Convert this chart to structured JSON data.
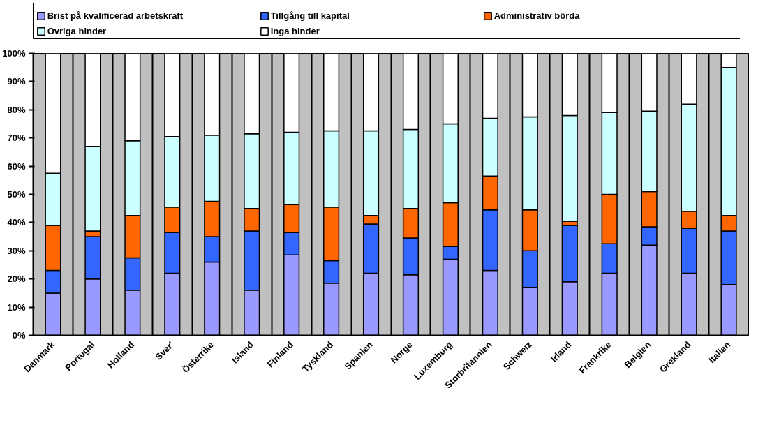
{
  "chart_data": {
    "type": "bar",
    "stacked": true,
    "categories": [
      "Danmark",
      "Portugal",
      "Holland",
      "Sver'",
      "Österrike",
      "Island",
      "Finland",
      "Tyskland",
      "Spanien",
      "Norge",
      "Luxemburg",
      "Storbritannien",
      "Schweiz",
      "Irland",
      "Frankrike",
      "Belgien",
      "Grekland",
      "Italien"
    ],
    "series": [
      {
        "name": "Brist på kvalificerad arbetskraft",
        "color": "#9999ff",
        "values": [
          15,
          20,
          16,
          22,
          26,
          16,
          28.5,
          18.5,
          22,
          21.5,
          27,
          23,
          17,
          19,
          22,
          32,
          22,
          18
        ]
      },
      {
        "name": "Tillgång till kapital",
        "color": "#3366ff",
        "values": [
          8,
          15,
          11.5,
          14.5,
          9,
          21,
          8,
          8,
          17.5,
          13,
          4.5,
          21.5,
          13,
          20,
          10.5,
          6.5,
          16,
          19
        ]
      },
      {
        "name": "Administrativ börda",
        "color": "#ff6600",
        "values": [
          16,
          2,
          15,
          9,
          12.5,
          8,
          10,
          19,
          3,
          10.5,
          15.5,
          12,
          14.5,
          1.5,
          17.5,
          12.5,
          6,
          5.5
        ]
      },
      {
        "name": "Övriga hinder",
        "color": "#ccffff",
        "values": [
          18.5,
          30,
          26.5,
          25,
          23.5,
          26.5,
          25.5,
          27,
          30,
          28,
          28,
          20.5,
          33,
          37.5,
          29,
          28.5,
          38,
          52.5
        ]
      },
      {
        "name": "Inga hinder",
        "color": "#ffffff",
        "values": [
          42.5,
          33,
          31,
          29.5,
          29,
          28.5,
          28,
          27.5,
          27.5,
          27,
          25,
          23,
          22.5,
          22,
          21,
          20.5,
          18,
          5
        ]
      }
    ],
    "ylim": [
      0,
      100
    ],
    "yticks": [
      {
        "value": 0,
        "label": "0%"
      },
      {
        "value": 10,
        "label": "10%"
      },
      {
        "value": 20,
        "label": "20%"
      },
      {
        "value": 30,
        "label": "30%"
      },
      {
        "value": 40,
        "label": "40%"
      },
      {
        "value": 50,
        "label": "50%"
      },
      {
        "value": 60,
        "label": "60%"
      },
      {
        "value": 70,
        "label": "70%"
      },
      {
        "value": 80,
        "label": "80%"
      },
      {
        "value": 90,
        "label": "90%"
      },
      {
        "value": 100,
        "label": "100%"
      }
    ],
    "grid": "x",
    "legend": "top"
  }
}
